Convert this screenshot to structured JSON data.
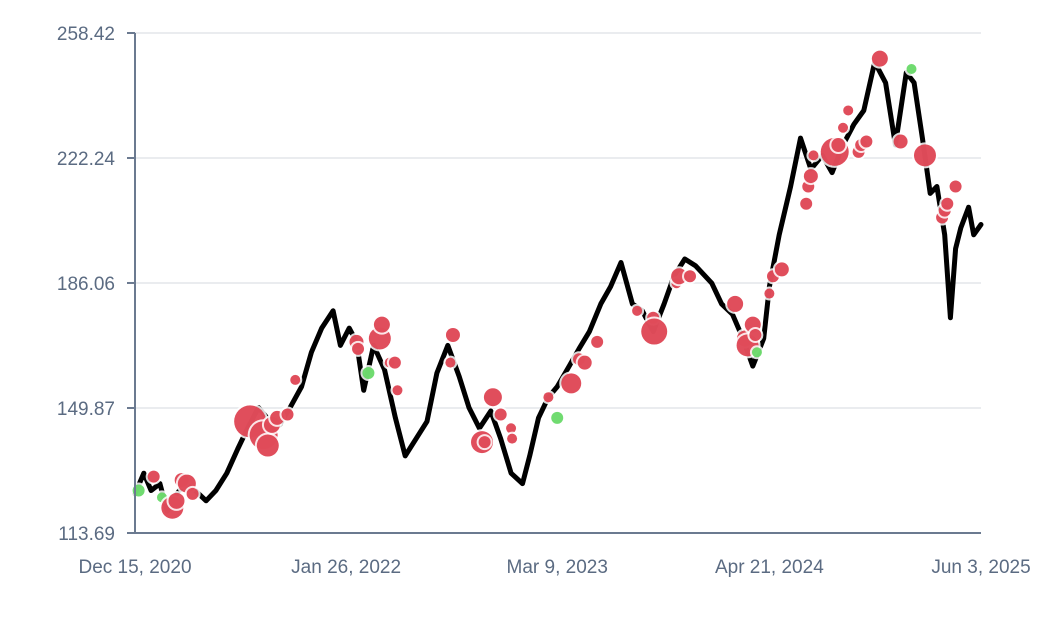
{
  "chart_data": {
    "type": "line",
    "title": "",
    "xlabel": "",
    "ylabel": "",
    "x_range": [
      "2020-12-15",
      "2025-06-03"
    ],
    "ylim": [
      113.69,
      258.42
    ],
    "y_ticks": [
      "113.69",
      "149.87",
      "186.06",
      "222.24",
      "258.42"
    ],
    "x_ticks": [
      {
        "date": "2020-12-15",
        "label": "Dec 15, 2020"
      },
      {
        "date": "2022-01-26",
        "label": "Jan 26, 2022"
      },
      {
        "date": "2023-03-09",
        "label": "Mar 9, 2023"
      },
      {
        "date": "2024-04-21",
        "label": "Apr 21, 2024"
      },
      {
        "date": "2025-06-03",
        "label": "Jun 3, 2025"
      }
    ],
    "grid": true,
    "line_color": "#000000",
    "colors": {
      "red_marker": "#dc3545",
      "green_marker": "#5cd65c"
    },
    "price": [
      [
        "2020-12-15",
        125
      ],
      [
        "2021-01-01",
        131
      ],
      [
        "2021-01-15",
        126
      ],
      [
        "2021-02-01",
        128
      ],
      [
        "2021-02-15",
        120
      ],
      [
        "2021-03-01",
        124
      ],
      [
        "2021-03-20",
        128
      ],
      [
        "2021-04-10",
        126
      ],
      [
        "2021-05-01",
        123
      ],
      [
        "2021-05-20",
        126
      ],
      [
        "2021-06-10",
        131
      ],
      [
        "2021-07-01",
        138
      ],
      [
        "2021-07-20",
        144
      ],
      [
        "2021-08-10",
        150
      ],
      [
        "2021-09-01",
        146
      ],
      [
        "2021-09-20",
        145
      ],
      [
        "2021-10-10",
        150
      ],
      [
        "2021-11-01",
        156
      ],
      [
        "2021-11-20",
        166
      ],
      [
        "2021-12-10",
        173
      ],
      [
        "2022-01-01",
        178
      ],
      [
        "2022-01-15",
        168
      ],
      [
        "2022-02-01",
        173
      ],
      [
        "2022-02-15",
        169
      ],
      [
        "2022-03-01",
        155
      ],
      [
        "2022-03-20",
        168
      ],
      [
        "2022-04-10",
        161
      ],
      [
        "2022-05-01",
        147
      ],
      [
        "2022-05-20",
        136
      ],
      [
        "2022-06-10",
        141
      ],
      [
        "2022-07-01",
        146
      ],
      [
        "2022-07-20",
        160
      ],
      [
        "2022-08-10",
        168
      ],
      [
        "2022-09-01",
        159
      ],
      [
        "2022-09-20",
        150
      ],
      [
        "2022-10-10",
        144
      ],
      [
        "2022-11-01",
        149
      ],
      [
        "2022-11-20",
        141
      ],
      [
        "2022-12-10",
        131
      ],
      [
        "2023-01-01",
        128
      ],
      [
        "2023-01-15",
        136
      ],
      [
        "2023-02-01",
        147
      ],
      [
        "2023-02-20",
        153
      ],
      [
        "2023-03-09",
        156
      ],
      [
        "2023-04-01",
        162
      ],
      [
        "2023-04-20",
        167
      ],
      [
        "2023-05-10",
        172
      ],
      [
        "2023-06-01",
        180
      ],
      [
        "2023-06-20",
        185
      ],
      [
        "2023-07-10",
        192
      ],
      [
        "2023-08-01",
        180
      ],
      [
        "2023-08-20",
        178
      ],
      [
        "2023-09-10",
        172
      ],
      [
        "2023-10-01",
        180
      ],
      [
        "2023-10-20",
        188
      ],
      [
        "2023-11-10",
        193
      ],
      [
        "2023-12-01",
        191
      ],
      [
        "2024-01-01",
        186
      ],
      [
        "2024-01-20",
        180
      ],
      [
        "2024-02-10",
        177
      ],
      [
        "2024-03-01",
        170
      ],
      [
        "2024-03-20",
        162
      ],
      [
        "2024-04-10",
        170
      ],
      [
        "2024-04-21",
        185
      ],
      [
        "2024-05-10",
        200
      ],
      [
        "2024-06-01",
        214
      ],
      [
        "2024-06-20",
        228
      ],
      [
        "2024-07-10",
        219
      ],
      [
        "2024-08-01",
        223
      ],
      [
        "2024-08-20",
        218
      ],
      [
        "2024-09-10",
        226
      ],
      [
        "2024-10-01",
        232
      ],
      [
        "2024-10-20",
        236
      ],
      [
        "2024-11-10",
        250
      ],
      [
        "2024-12-01",
        244
      ],
      [
        "2024-12-20",
        226
      ],
      [
        "2025-01-10",
        247
      ],
      [
        "2025-01-25",
        244
      ],
      [
        "2025-02-10",
        228
      ],
      [
        "2025-02-25",
        212
      ],
      [
        "2025-03-10",
        214
      ],
      [
        "2025-03-25",
        200
      ],
      [
        "2025-04-05",
        176
      ],
      [
        "2025-04-15",
        196
      ],
      [
        "2025-04-25",
        202
      ],
      [
        "2025-05-10",
        208
      ],
      [
        "2025-05-20",
        200
      ],
      [
        "2025-06-03",
        203
      ]
    ],
    "markers": [
      {
        "date": "2020-12-22",
        "y": 126,
        "color": "green",
        "size": 6
      },
      {
        "date": "2021-01-20",
        "y": 130,
        "color": "red",
        "size": 6
      },
      {
        "date": "2021-02-05",
        "y": 124,
        "color": "green",
        "size": 5
      },
      {
        "date": "2021-02-25",
        "y": 121,
        "color": "red",
        "size": 11
      },
      {
        "date": "2021-03-05",
        "y": 123,
        "color": "red",
        "size": 8
      },
      {
        "date": "2021-03-15",
        "y": 129,
        "color": "red",
        "size": 7
      },
      {
        "date": "2021-03-25",
        "y": 128,
        "color": "red",
        "size": 9
      },
      {
        "date": "2021-04-05",
        "y": 125,
        "color": "red",
        "size": 6
      },
      {
        "date": "2021-07-25",
        "y": 146,
        "color": "red",
        "size": 16
      },
      {
        "date": "2021-08-20",
        "y": 142,
        "color": "red",
        "size": 14
      },
      {
        "date": "2021-08-28",
        "y": 139,
        "color": "red",
        "size": 11
      },
      {
        "date": "2021-09-05",
        "y": 145,
        "color": "red",
        "size": 8
      },
      {
        "date": "2021-09-15",
        "y": 147,
        "color": "red",
        "size": 7
      },
      {
        "date": "2021-10-05",
        "y": 148,
        "color": "red",
        "size": 6
      },
      {
        "date": "2021-10-20",
        "y": 158,
        "color": "red",
        "size": 5
      },
      {
        "date": "2022-02-15",
        "y": 169,
        "color": "red",
        "size": 7
      },
      {
        "date": "2022-02-18",
        "y": 167,
        "color": "red",
        "size": 6
      },
      {
        "date": "2022-03-10",
        "y": 160,
        "color": "green",
        "size": 6
      },
      {
        "date": "2022-04-01",
        "y": 170,
        "color": "red",
        "size": 11
      },
      {
        "date": "2022-04-05",
        "y": 174,
        "color": "red",
        "size": 8
      },
      {
        "date": "2022-04-20",
        "y": 163,
        "color": "red",
        "size": 5
      },
      {
        "date": "2022-04-30",
        "y": 163,
        "color": "red",
        "size": 6
      },
      {
        "date": "2022-05-05",
        "y": 155,
        "color": "red",
        "size": 5
      },
      {
        "date": "2022-08-15",
        "y": 163,
        "color": "red",
        "size": 5
      },
      {
        "date": "2022-08-20",
        "y": 171,
        "color": "red",
        "size": 7
      },
      {
        "date": "2022-10-15",
        "y": 140,
        "color": "red",
        "size": 11
      },
      {
        "date": "2022-10-20",
        "y": 140,
        "color": "red",
        "size": 6
      },
      {
        "date": "2022-11-05",
        "y": 153,
        "color": "red",
        "size": 9
      },
      {
        "date": "2022-11-20",
        "y": 148,
        "color": "red",
        "size": 6
      },
      {
        "date": "2022-12-10",
        "y": 144,
        "color": "red",
        "size": 5
      },
      {
        "date": "2022-12-12",
        "y": 141,
        "color": "red",
        "size": 5
      },
      {
        "date": "2023-02-20",
        "y": 153,
        "color": "red",
        "size": 5
      },
      {
        "date": "2023-03-09",
        "y": 147,
        "color": "green",
        "size": 6
      },
      {
        "date": "2023-04-05",
        "y": 157,
        "color": "red",
        "size": 10
      },
      {
        "date": "2023-04-20",
        "y": 164,
        "color": "red",
        "size": 6
      },
      {
        "date": "2023-05-01",
        "y": 163,
        "color": "red",
        "size": 7
      },
      {
        "date": "2023-05-25",
        "y": 169,
        "color": "red",
        "size": 6
      },
      {
        "date": "2023-08-10",
        "y": 178,
        "color": "red",
        "size": 5
      },
      {
        "date": "2023-09-10",
        "y": 176,
        "color": "red",
        "size": 6
      },
      {
        "date": "2023-09-12",
        "y": 172,
        "color": "red",
        "size": 13
      },
      {
        "date": "2023-10-25",
        "y": 186,
        "color": "red",
        "size": 5
      },
      {
        "date": "2023-10-30",
        "y": 188,
        "color": "red",
        "size": 8
      },
      {
        "date": "2023-11-20",
        "y": 188,
        "color": "red",
        "size": 6
      },
      {
        "date": "2024-02-15",
        "y": 180,
        "color": "red",
        "size": 8
      },
      {
        "date": "2024-03-05",
        "y": 170,
        "color": "red",
        "size": 8
      },
      {
        "date": "2024-03-10",
        "y": 168,
        "color": "red",
        "size": 11
      },
      {
        "date": "2024-03-20",
        "y": 174,
        "color": "red",
        "size": 8
      },
      {
        "date": "2024-03-25",
        "y": 171,
        "color": "red",
        "size": 6
      },
      {
        "date": "2024-03-28",
        "y": 166,
        "color": "green",
        "size": 5
      },
      {
        "date": "2024-04-21",
        "y": 183,
        "color": "red",
        "size": 5
      },
      {
        "date": "2024-04-28",
        "y": 188,
        "color": "red",
        "size": 6
      },
      {
        "date": "2024-05-15",
        "y": 190,
        "color": "red",
        "size": 7
      },
      {
        "date": "2024-07-01",
        "y": 209,
        "color": "red",
        "size": 6
      },
      {
        "date": "2024-07-05",
        "y": 214,
        "color": "red",
        "size": 6
      },
      {
        "date": "2024-07-10",
        "y": 217,
        "color": "red",
        "size": 7
      },
      {
        "date": "2024-07-15",
        "y": 223,
        "color": "red",
        "size": 5
      },
      {
        "date": "2024-08-25",
        "y": 224,
        "color": "red",
        "size": 14
      },
      {
        "date": "2024-09-01",
        "y": 226,
        "color": "red",
        "size": 7
      },
      {
        "date": "2024-09-10",
        "y": 231,
        "color": "red",
        "size": 5
      },
      {
        "date": "2024-09-20",
        "y": 236,
        "color": "red",
        "size": 5
      },
      {
        "date": "2024-10-10",
        "y": 224,
        "color": "red",
        "size": 6
      },
      {
        "date": "2024-10-15",
        "y": 226,
        "color": "red",
        "size": 6
      },
      {
        "date": "2024-10-25",
        "y": 227,
        "color": "red",
        "size": 6
      },
      {
        "date": "2024-11-20",
        "y": 251,
        "color": "red",
        "size": 8
      },
      {
        "date": "2024-12-30",
        "y": 227,
        "color": "red",
        "size": 7
      },
      {
        "date": "2025-01-20",
        "y": 248,
        "color": "green",
        "size": 5
      },
      {
        "date": "2025-02-15",
        "y": 223,
        "color": "red",
        "size": 11
      },
      {
        "date": "2025-03-20",
        "y": 205,
        "color": "red",
        "size": 6
      },
      {
        "date": "2025-03-25",
        "y": 207,
        "color": "red",
        "size": 6
      },
      {
        "date": "2025-03-30",
        "y": 209,
        "color": "red",
        "size": 6
      },
      {
        "date": "2025-04-15",
        "y": 214,
        "color": "red",
        "size": 6
      }
    ]
  }
}
